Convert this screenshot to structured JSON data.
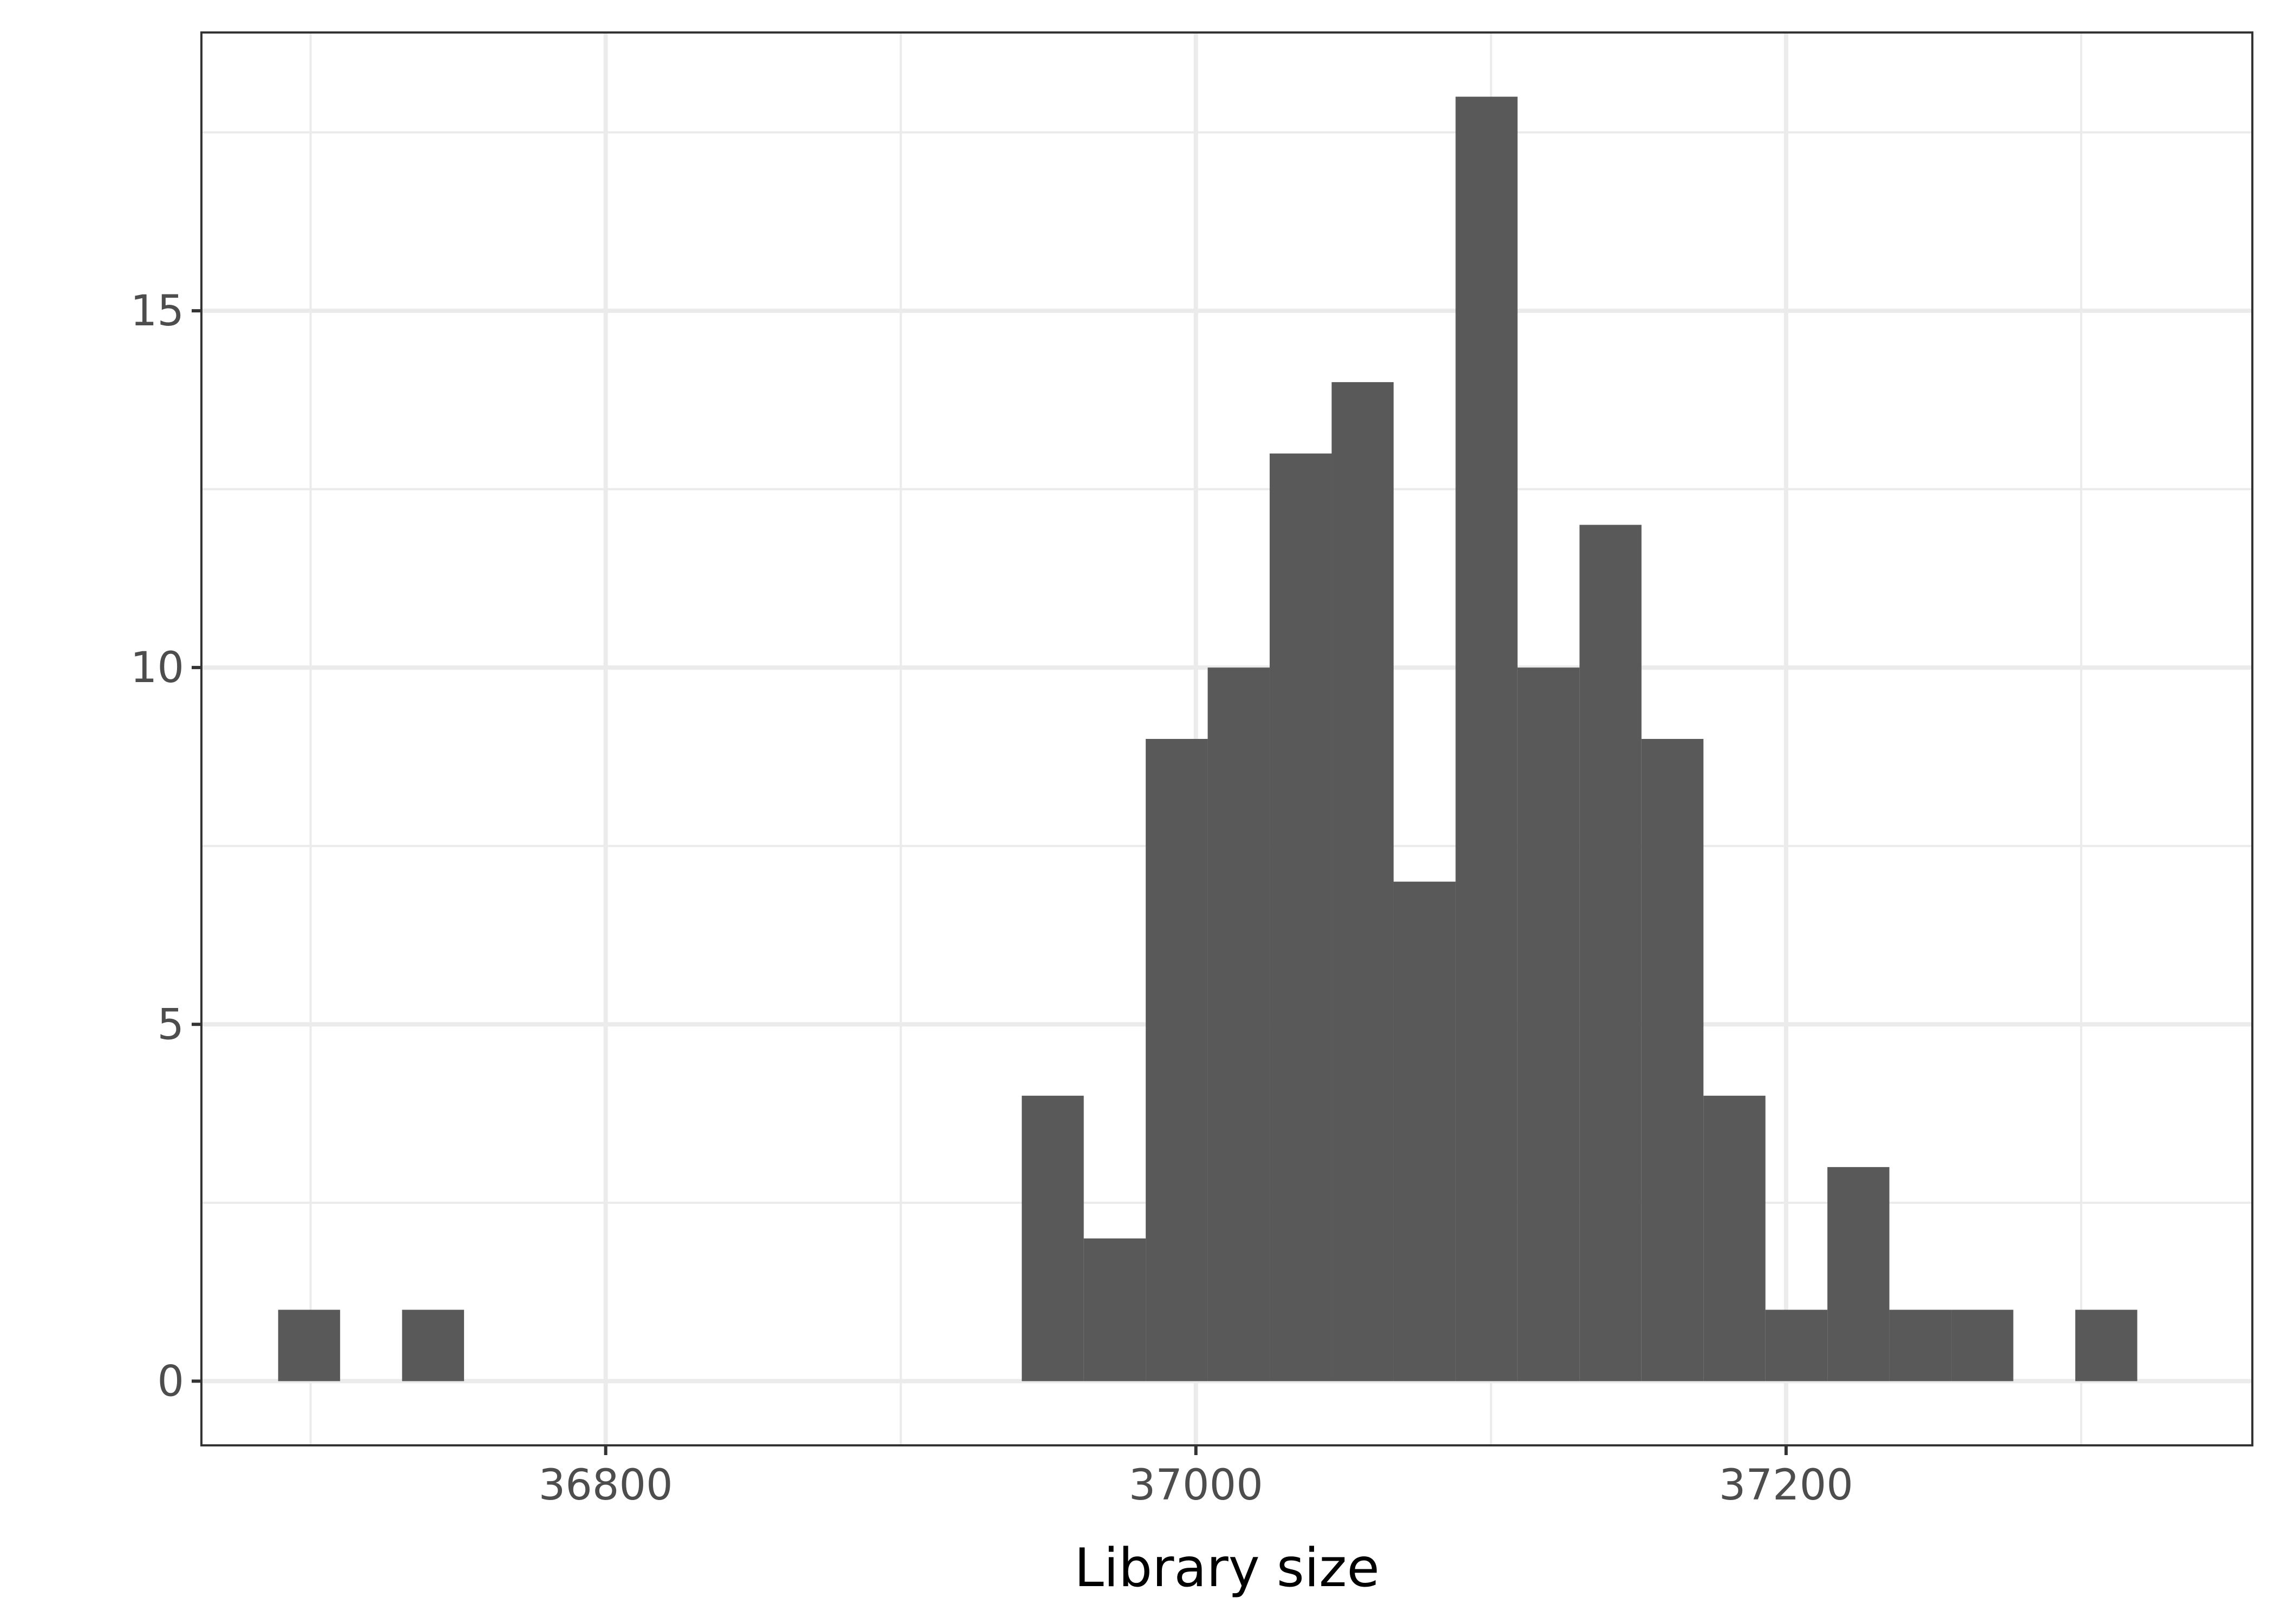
{
  "chart_data": {
    "type": "bar",
    "subtype": "histogram",
    "title": "",
    "xlabel": "Library size",
    "ylabel": "",
    "xlim": [
      36663,
      37358
    ],
    "ylim": [
      -0.9,
      18.9
    ],
    "bin_width": 21,
    "x_ticks": [
      36800,
      37000,
      37200
    ],
    "y_ticks": [
      0,
      5,
      10,
      15
    ],
    "grid": true,
    "bar_color": "#595959",
    "bins": [
      {
        "start": 36689,
        "end": 36710,
        "count": 1
      },
      {
        "start": 36731,
        "end": 36752,
        "count": 1
      },
      {
        "start": 36941,
        "end": 36962,
        "count": 4
      },
      {
        "start": 36962,
        "end": 36983,
        "count": 2
      },
      {
        "start": 36983,
        "end": 37004,
        "count": 9
      },
      {
        "start": 37004,
        "end": 37025,
        "count": 10
      },
      {
        "start": 37025,
        "end": 37046,
        "count": 13
      },
      {
        "start": 37046,
        "end": 37067,
        "count": 14
      },
      {
        "start": 37067,
        "end": 37088,
        "count": 7
      },
      {
        "start": 37088,
        "end": 37109,
        "count": 18
      },
      {
        "start": 37109,
        "end": 37130,
        "count": 10
      },
      {
        "start": 37130,
        "end": 37151,
        "count": 12
      },
      {
        "start": 37151,
        "end": 37172,
        "count": 9
      },
      {
        "start": 37172,
        "end": 37193,
        "count": 4
      },
      {
        "start": 37193,
        "end": 37214,
        "count": 1
      },
      {
        "start": 37214,
        "end": 37235,
        "count": 3
      },
      {
        "start": 37235,
        "end": 37256,
        "count": 1
      },
      {
        "start": 37256,
        "end": 37277,
        "count": 1
      },
      {
        "start": 37298,
        "end": 37319,
        "count": 1
      }
    ]
  }
}
